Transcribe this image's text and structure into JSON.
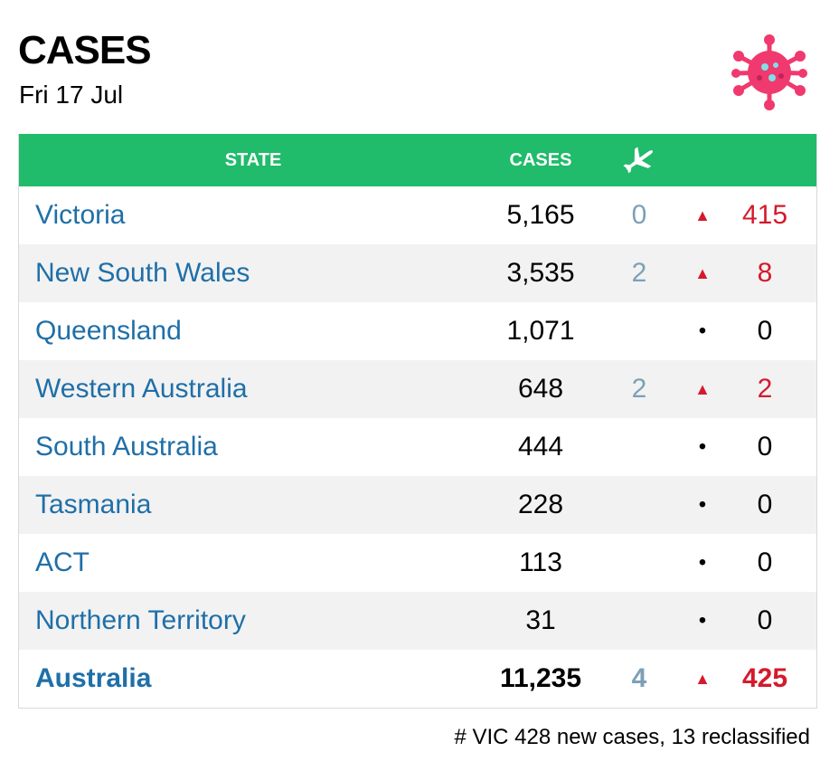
{
  "header": {
    "title": "CASES",
    "date": "Fri 17 Jul",
    "icon": "virus-icon"
  },
  "colors": {
    "header_bg": "#20bb6b",
    "state_link": "#1f6fa8",
    "increase": "#d41a2c",
    "overseas": "#7da0b8",
    "virus": "#f0396e"
  },
  "table": {
    "columns": {
      "state": "STATE",
      "cases": "CASES",
      "overseas_icon": "plane-icon"
    },
    "rows": [
      {
        "state": "Victoria",
        "cases": "5,165",
        "overseas": "0",
        "trend": "up",
        "trend_glyph": "▲",
        "change": "415"
      },
      {
        "state": "New South Wales",
        "cases": "3,535",
        "overseas": "2",
        "trend": "up",
        "trend_glyph": "▲",
        "change": "8"
      },
      {
        "state": "Queensland",
        "cases": "1,071",
        "overseas": "",
        "trend": "flat",
        "trend_glyph": "•",
        "change": "0"
      },
      {
        "state": "Western Australia",
        "cases": "648",
        "overseas": "2",
        "trend": "up",
        "trend_glyph": "▲",
        "change": "2"
      },
      {
        "state": "South Australia",
        "cases": "444",
        "overseas": "",
        "trend": "flat",
        "trend_glyph": "•",
        "change": "0"
      },
      {
        "state": "Tasmania",
        "cases": "228",
        "overseas": "",
        "trend": "flat",
        "trend_glyph": "•",
        "change": "0"
      },
      {
        "state": "ACT",
        "cases": "113",
        "overseas": "",
        "trend": "flat",
        "trend_glyph": "•",
        "change": "0"
      },
      {
        "state": "Northern Territory",
        "cases": "31",
        "overseas": "",
        "trend": "flat",
        "trend_glyph": "•",
        "change": "0"
      }
    ],
    "total": {
      "state": "Australia",
      "cases": "11,235",
      "overseas": "4",
      "trend": "up",
      "trend_glyph": "▲",
      "change": "425"
    }
  },
  "footnote": "# VIC 428 new cases, 13 reclassified"
}
